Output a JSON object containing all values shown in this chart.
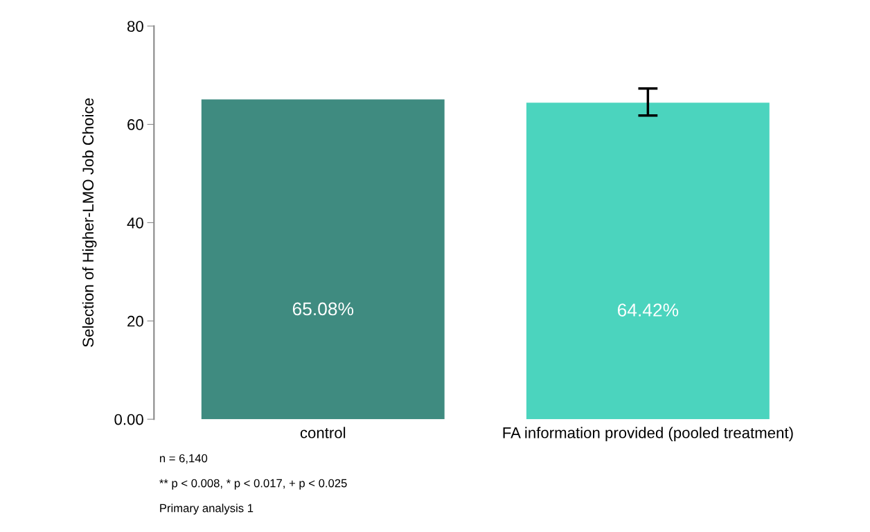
{
  "chart_data": {
    "type": "bar",
    "ylabel": "Selection of Higher-LMO Job Choice",
    "categories": [
      "control",
      "FA information provided (pooled treatment)"
    ],
    "values": [
      65.08,
      64.42
    ],
    "colors": [
      "#3f8b80",
      "#4bd4be"
    ],
    "errors": [
      null,
      [
        61.8,
        67.3
      ]
    ],
    "value_labels": [
      "65.08%",
      "64.42%"
    ],
    "ylim": [
      0,
      80
    ],
    "yticks": [
      {
        "value": 0,
        "label": "0.00"
      },
      20,
      40,
      60,
      80
    ],
    "annotations": [
      "n = 6,140",
      "** p < 0.008, * p < 0.017, + p < 0.025",
      "Primary analysis 1"
    ]
  }
}
